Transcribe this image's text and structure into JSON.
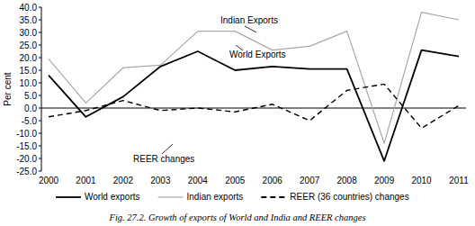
{
  "chart_data": {
    "type": "line",
    "title": "Fig. 27.2. Growth of exports of World and India and REER changes",
    "y_label": "Per cent",
    "categories": [
      "2000",
      "2001",
      "2002",
      "2003",
      "2004",
      "2005",
      "2006",
      "2007",
      "2008",
      "2009",
      "2010",
      "2011"
    ],
    "series": [
      {
        "name": "World exports",
        "color": "#000000",
        "line_style": "solid",
        "values": [
          13,
          -3.5,
          4.5,
          16.5,
          22.5,
          15,
          16.5,
          15.5,
          15.5,
          -21,
          23,
          20.5
        ]
      },
      {
        "name": "Indian exports",
        "color": "#a8a8a8",
        "line_style": "solid",
        "values": [
          19.5,
          2,
          16,
          17,
          30.5,
          30.5,
          23,
          24.5,
          30.5,
          -14,
          38,
          35
        ]
      },
      {
        "name": "REER (36 countries) changes",
        "color": "#000000",
        "line_style": "dashed",
        "values": [
          -3.5,
          -1,
          3,
          -1,
          0,
          -1.5,
          1.5,
          -5,
          7,
          9.5,
          -8,
          1
        ]
      }
    ],
    "annotations": [
      "Indian Exports",
      "World Exports",
      "REER changes"
    ],
    "ylim": [
      -25,
      40
    ],
    "yticks": [
      {
        "value": 40,
        "label": "40.0"
      },
      {
        "value": 35,
        "label": "35.0"
      },
      {
        "value": 30,
        "label": "30.0"
      },
      {
        "value": 25,
        "label": "25.0"
      },
      {
        "value": 20,
        "label": "20.0"
      },
      {
        "value": 15,
        "label": "15.0"
      },
      {
        "value": 10,
        "label": "10.0"
      },
      {
        "value": 5,
        "label": "5.0"
      },
      {
        "value": 0,
        "label": "0.0"
      },
      {
        "value": -5,
        "label": "-5.0"
      },
      {
        "value": -10,
        "label": "-10.0"
      },
      {
        "value": -15,
        "label": "-15.0"
      },
      {
        "value": -20,
        "label": "-20.0"
      },
      {
        "value": -25,
        "label": "-25.0"
      }
    ],
    "grid": false,
    "legend": "bottom"
  }
}
